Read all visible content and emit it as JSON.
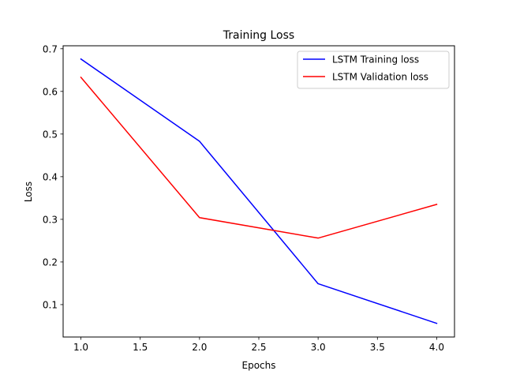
{
  "chart_data": {
    "type": "line",
    "title": "Training Loss",
    "xlabel": "Epochs",
    "ylabel": "Loss",
    "xlim": [
      0.85,
      4.15
    ],
    "ylim": [
      0.024,
      0.707
    ],
    "xticks": [
      1.0,
      1.5,
      2.0,
      2.5,
      3.0,
      3.5,
      4.0
    ],
    "xtick_labels": [
      "1.0",
      "1.5",
      "2.0",
      "2.5",
      "3.0",
      "3.5",
      "4.0"
    ],
    "yticks": [
      0.1,
      0.2,
      0.3,
      0.4,
      0.5,
      0.6,
      0.7
    ],
    "ytick_labels": [
      "0.1",
      "0.2",
      "0.3",
      "0.4",
      "0.5",
      "0.6",
      "0.7"
    ],
    "grid": false,
    "legend": "top-right",
    "x": [
      1.0,
      2.0,
      3.0,
      4.0
    ],
    "series": [
      {
        "name": "LSTM Training loss",
        "color": "#0000ff",
        "values": [
          0.676,
          0.483,
          0.149,
          0.056
        ]
      },
      {
        "name": "LSTM Validation loss",
        "color": "#ff0000",
        "values": [
          0.633,
          0.304,
          0.256,
          0.335
        ]
      }
    ]
  }
}
